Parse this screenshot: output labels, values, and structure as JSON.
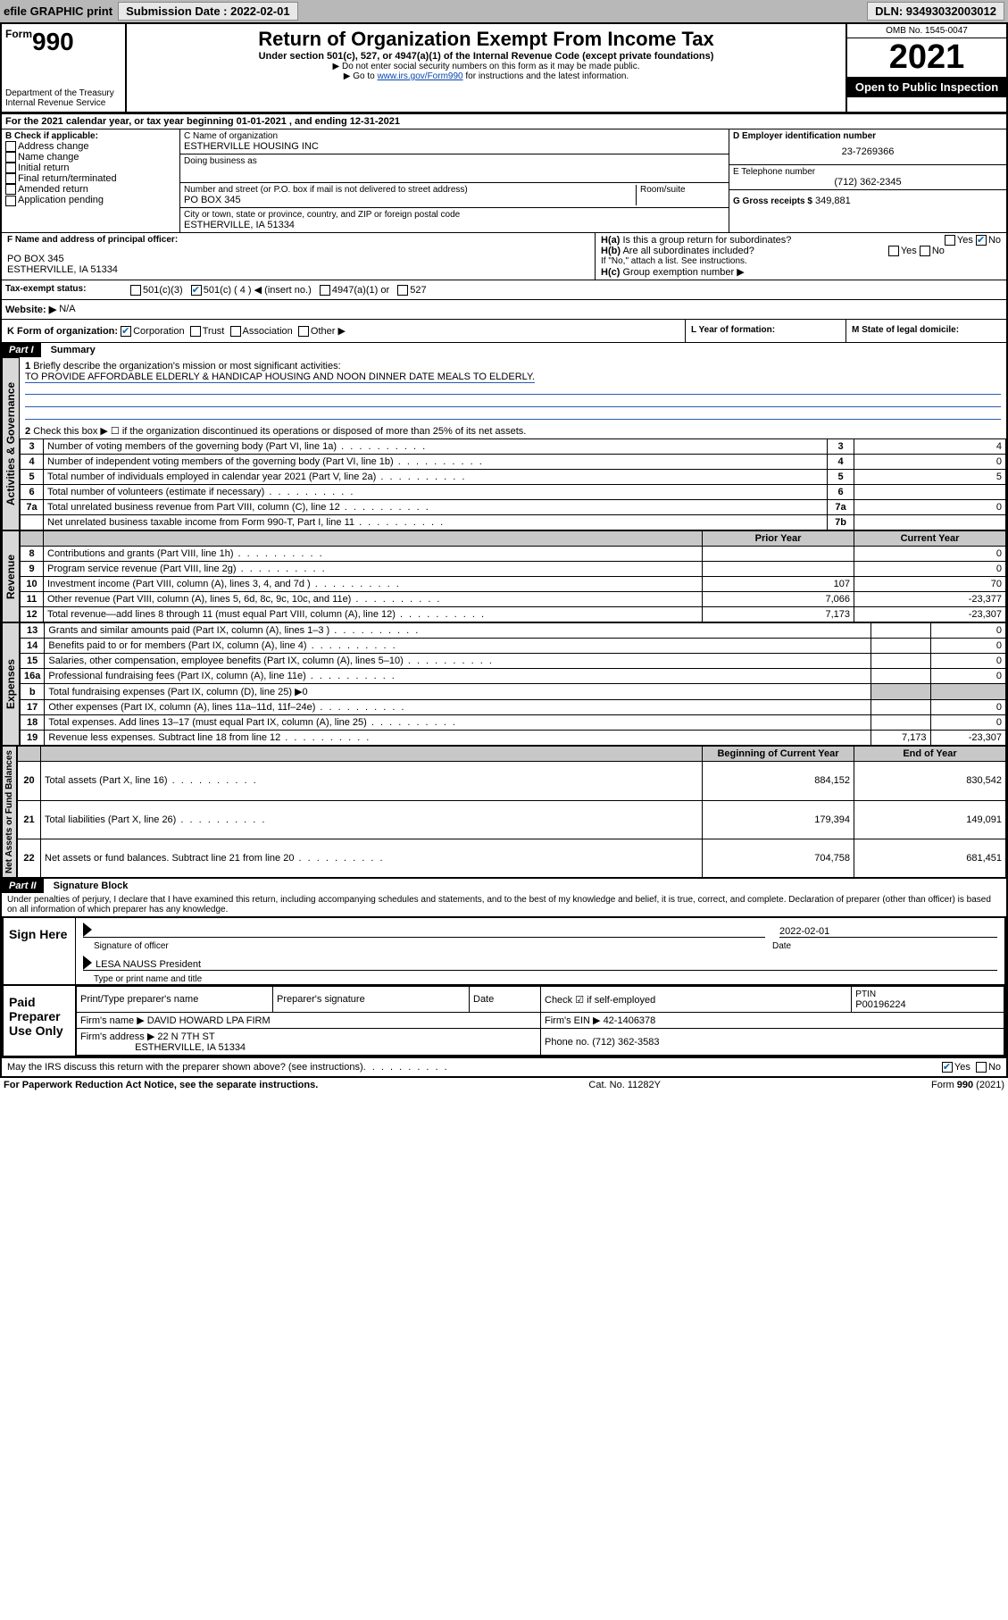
{
  "topbar": {
    "efile": "efile GRAPHIC print",
    "submission_label": "Submission Date : 2022-02-01",
    "dln": "DLN: 93493032003012"
  },
  "header": {
    "form_label": "Form",
    "form_no": "990",
    "title": "Return of Organization Exempt From Income Tax",
    "sub1": "Under section 501(c), 527, or 4947(a)(1) of the Internal Revenue Code (except private foundations)",
    "sub2": "Do not enter social security numbers on this form as it may be made public.",
    "sub3_pre": "Go to ",
    "sub3_link": "www.irs.gov/Form990",
    "sub3_post": " for instructions and the latest information.",
    "dept": "Department of the Treasury",
    "irs": "Internal Revenue Service",
    "omb": "OMB No. 1545-0047",
    "year": "2021",
    "open": "Open to Public Inspection"
  },
  "A": {
    "line": "For the 2021 calendar year, or tax year beginning 01-01-2021   , and ending 12-31-2021"
  },
  "B": {
    "label": "B Check if applicable:",
    "opts": [
      "Address change",
      "Name change",
      "Initial return",
      "Final return/terminated",
      "Amended return",
      "Application pending"
    ]
  },
  "C": {
    "name_label": "C Name of organization",
    "name": "ESTHERVILLE HOUSING INC",
    "dba_label": "Doing business as",
    "street_label": "Number and street (or P.O. box if mail is not delivered to street address)",
    "room_label": "Room/suite",
    "street": "PO BOX 345",
    "city_label": "City or town, state or province, country, and ZIP or foreign postal code",
    "city": "ESTHERVILLE, IA  51334"
  },
  "D": {
    "label": "D Employer identification number",
    "val": "23-7269366"
  },
  "E": {
    "label": "E Telephone number",
    "val": "(712) 362-2345"
  },
  "G": {
    "label": "G Gross receipts $",
    "val": "349,881"
  },
  "F": {
    "label": "F  Name and address of principal officer:",
    "line1": "PO BOX 345",
    "line2": "ESTHERVILLE, IA  51334"
  },
  "H": {
    "a": "Is this a group return for subordinates?",
    "b": "Are all subordinates included?",
    "b_note": "If \"No,\" attach a list. See instructions.",
    "c": "Group exemption number ▶"
  },
  "I": {
    "label": "Tax-exempt status:",
    "opts": [
      "501(c)(3)",
      "501(c) ( 4 ) ◀ (insert no.)",
      "4947(a)(1) or",
      "527"
    ]
  },
  "J": {
    "label": "Website: ▶",
    "val": "N/A"
  },
  "K": {
    "label": "K Form of organization:",
    "opts": [
      "Corporation",
      "Trust",
      "Association",
      "Other ▶"
    ]
  },
  "L": {
    "label": "L Year of formation:"
  },
  "M": {
    "label": "M State of legal domicile:"
  },
  "part1": {
    "label": "Part I",
    "title": "Summary",
    "q1": "Briefly describe the organization's mission or most significant activities:",
    "mission": "TO PROVIDE AFFORDABLE ELDERLY & HANDICAP HOUSING AND NOON DINNER DATE MEALS TO ELDERLY.",
    "q2": "Check this box ▶ ☐  if the organization discontinued its operations or disposed of more than 25% of its net assets.",
    "lines_gov": [
      {
        "n": "3",
        "t": "Number of voting members of the governing body (Part VI, line 1a)",
        "box": "3",
        "v": "4"
      },
      {
        "n": "4",
        "t": "Number of independent voting members of the governing body (Part VI, line 1b)",
        "box": "4",
        "v": "0"
      },
      {
        "n": "5",
        "t": "Total number of individuals employed in calendar year 2021 (Part V, line 2a)",
        "box": "5",
        "v": "5"
      },
      {
        "n": "6",
        "t": "Total number of volunteers (estimate if necessary)",
        "box": "6",
        "v": ""
      },
      {
        "n": "7a",
        "t": "Total unrelated business revenue from Part VIII, column (C), line 12",
        "box": "7a",
        "v": "0"
      },
      {
        "n": "",
        "t": "Net unrelated business taxable income from Form 990-T, Part I, line 11",
        "box": "7b",
        "v": ""
      }
    ],
    "col_prior": "Prior Year",
    "col_curr": "Current Year",
    "lines_rev": [
      {
        "n": "8",
        "t": "Contributions and grants (Part VIII, line 1h)",
        "p": "",
        "c": "0"
      },
      {
        "n": "9",
        "t": "Program service revenue (Part VIII, line 2g)",
        "p": "",
        "c": "0"
      },
      {
        "n": "10",
        "t": "Investment income (Part VIII, column (A), lines 3, 4, and 7d )",
        "p": "107",
        "c": "70"
      },
      {
        "n": "11",
        "t": "Other revenue (Part VIII, column (A), lines 5, 6d, 8c, 9c, 10c, and 11e)",
        "p": "7,066",
        "c": "-23,377"
      },
      {
        "n": "12",
        "t": "Total revenue—add lines 8 through 11 (must equal Part VIII, column (A), line 12)",
        "p": "7,173",
        "c": "-23,307"
      }
    ],
    "lines_exp": [
      {
        "n": "13",
        "t": "Grants and similar amounts paid (Part IX, column (A), lines 1–3 )",
        "p": "",
        "c": "0"
      },
      {
        "n": "14",
        "t": "Benefits paid to or for members (Part IX, column (A), line 4)",
        "p": "",
        "c": "0"
      },
      {
        "n": "15",
        "t": "Salaries, other compensation, employee benefits (Part IX, column (A), lines 5–10)",
        "p": "",
        "c": "0"
      },
      {
        "n": "16a",
        "t": "Professional fundraising fees (Part IX, column (A), line 11e)",
        "p": "",
        "c": "0"
      },
      {
        "n": "b",
        "t": "Total fundraising expenses (Part IX, column (D), line 25) ▶0",
        "p": "—shade—",
        "c": "—shade—"
      },
      {
        "n": "17",
        "t": "Other expenses (Part IX, column (A), lines 11a–11d, 11f–24e)",
        "p": "",
        "c": "0"
      },
      {
        "n": "18",
        "t": "Total expenses. Add lines 13–17 (must equal Part IX, column (A), line 25)",
        "p": "",
        "c": "0"
      },
      {
        "n": "19",
        "t": "Revenue less expenses. Subtract line 18 from line 12",
        "p": "7,173",
        "c": "-23,307"
      }
    ],
    "col_begin": "Beginning of Current Year",
    "col_end": "End of Year",
    "lines_bal": [
      {
        "n": "20",
        "t": "Total assets (Part X, line 16)",
        "p": "884,152",
        "c": "830,542"
      },
      {
        "n": "21",
        "t": "Total liabilities (Part X, line 26)",
        "p": "179,394",
        "c": "149,091"
      },
      {
        "n": "22",
        "t": "Net assets or fund balances. Subtract line 21 from line 20",
        "p": "704,758",
        "c": "681,451"
      }
    ],
    "vtabs": [
      "Activities & Governance",
      "Revenue",
      "Expenses",
      "Net Assets or Fund Balances"
    ]
  },
  "part2": {
    "label": "Part II",
    "title": "Signature Block",
    "decl": "Under penalties of perjury, I declare that I have examined this return, including accompanying schedules and statements, and to the best of my knowledge and belief, it is true, correct, and complete. Declaration of preparer (other than officer) is based on all information of which preparer has any knowledge.",
    "sign_here": "Sign Here",
    "sig_officer": "Signature of officer",
    "sig_date": "2022-02-01",
    "date_lbl": "Date",
    "officer_name": "LESA NAUSS President",
    "officer_meta": "Type or print name and title",
    "paid": "Paid Preparer Use Only",
    "prep_name_lbl": "Print/Type preparer's name",
    "prep_sig_lbl": "Preparer's signature",
    "prep_date_lbl": "Date",
    "check_self": "Check ☑ if self-employed",
    "ptin_lbl": "PTIN",
    "ptin": "P00196224",
    "firm_name_lbl": "Firm's name   ▶",
    "firm_name": "DAVID HOWARD LPA FIRM",
    "firm_ein_lbl": "Firm's EIN ▶",
    "firm_ein": "42-1406378",
    "firm_addr_lbl": "Firm's address ▶",
    "firm_addr1": "22 N 7TH ST",
    "firm_addr2": "ESTHERVILLE, IA  51334",
    "firm_phone_lbl": "Phone no.",
    "firm_phone": "(712) 362-3583",
    "may_irs": "May the IRS discuss this return with the preparer shown above? (see instructions)"
  },
  "footer": {
    "pra": "For Paperwork Reduction Act Notice, see the separate instructions.",
    "cat": "Cat. No. 11282Y",
    "form": "Form 990 (2021)"
  },
  "colors": {
    "topbar_bg": "#b8b8b8",
    "link": "#0645ad",
    "check": "#0066b3",
    "shade": "#c8c8c8"
  }
}
